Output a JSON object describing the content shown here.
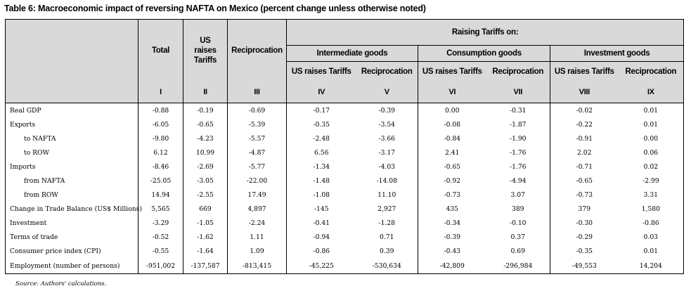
{
  "caption": "Table 6: Macroeconomic impact of reversing NAFTA on Mexico (percent change unless otherwise noted)",
  "source": "Source: Authors' calculations.",
  "headers": {
    "total": "Total",
    "us_raises_tariffs": "US raises Tariffs",
    "reciprocation": "Reciprocation",
    "raising_tariffs_on": "Raising Tariffs on:",
    "groups": [
      "Intermediate goods",
      "Consumption goods",
      "Investment goods"
    ],
    "sub": [
      "US raises Tariffs",
      "Reciprocation",
      "US raises Tariffs",
      "Reciprocation",
      "US raises Tariffs",
      "Reciprocation"
    ],
    "roman": [
      "I",
      "II",
      "III",
      "IV",
      "V",
      "VI",
      "VII",
      "VIII",
      "IX"
    ]
  },
  "rows": [
    {
      "label": "Real GDP",
      "values": [
        "-0.88",
        "-0.19",
        "-0.69",
        "-0.17",
        "-0.39",
        "0.00",
        "-0.31",
        "-0.02",
        "0.01"
      ]
    },
    {
      "label": "Exports",
      "values": [
        "-6.05",
        "-0.65",
        "-5.39",
        "-0.35",
        "-3.54",
        "-0.08",
        "-1.87",
        "-0.22",
        "0.01"
      ]
    },
    {
      "label": "to NAFTA",
      "values": [
        "-9.80",
        "-4.23",
        "-5.57",
        "-2.48",
        "-3.66",
        "-0.84",
        "-1.90",
        "-0.91",
        "0.00"
      ]
    },
    {
      "label": "to ROW",
      "values": [
        "6.12",
        "10.99",
        "-4.87",
        "6.56",
        "-3.17",
        "2.41",
        "-1.76",
        "2.02",
        "0.06"
      ]
    },
    {
      "label": "Imports",
      "values": [
        "-8.46",
        "-2.69",
        "-5.77",
        "-1.34",
        "-4.03",
        "-0.65",
        "-1.76",
        "-0.71",
        "0.02"
      ]
    },
    {
      "label": "from NAFTA",
      "values": [
        "-25.05",
        "-3.05",
        "-22.00",
        "-1.48",
        "-14.08",
        "-0.92",
        "-4.94",
        "-0.65",
        "-2.99"
      ]
    },
    {
      "label": "from ROW",
      "values": [
        "14.94",
        "-2.55",
        "17.49",
        "-1.08",
        "11.10",
        "-0.73",
        "3.07",
        "-0.73",
        "3.31"
      ]
    },
    {
      "label": "Change in Trade Balance (US$ Millions)",
      "values": [
        "5,565",
        "669",
        "4,897",
        "-145",
        "2,927",
        "435",
        "389",
        "379",
        "1,580"
      ]
    },
    {
      "label": "Investment",
      "values": [
        "-3.29",
        "-1.05",
        "-2.24",
        "-0.41",
        "-1.28",
        "-0.34",
        "-0.10",
        "-0.30",
        "-0.86"
      ]
    },
    {
      "label": "Terms of trade",
      "values": [
        "-0.52",
        "-1.62",
        "1.11",
        "-0.94",
        "0.71",
        "-0.39",
        "0.37",
        "-0.29",
        "0.03"
      ]
    },
    {
      "label": "Consumer price index (CPI)",
      "values": [
        "-0.55",
        "-1.64",
        "1.09",
        "-0.86",
        "0.39",
        "-0.43",
        "0.69",
        "-0.35",
        "0.01"
      ]
    },
    {
      "label": "Employment (number of persons)",
      "values": [
        "-951,002",
        "-137,587",
        "-813,415",
        "-45,225",
        "-530,634",
        "-42,809",
        "-296,984",
        "-49,553",
        "14,204"
      ]
    }
  ]
}
